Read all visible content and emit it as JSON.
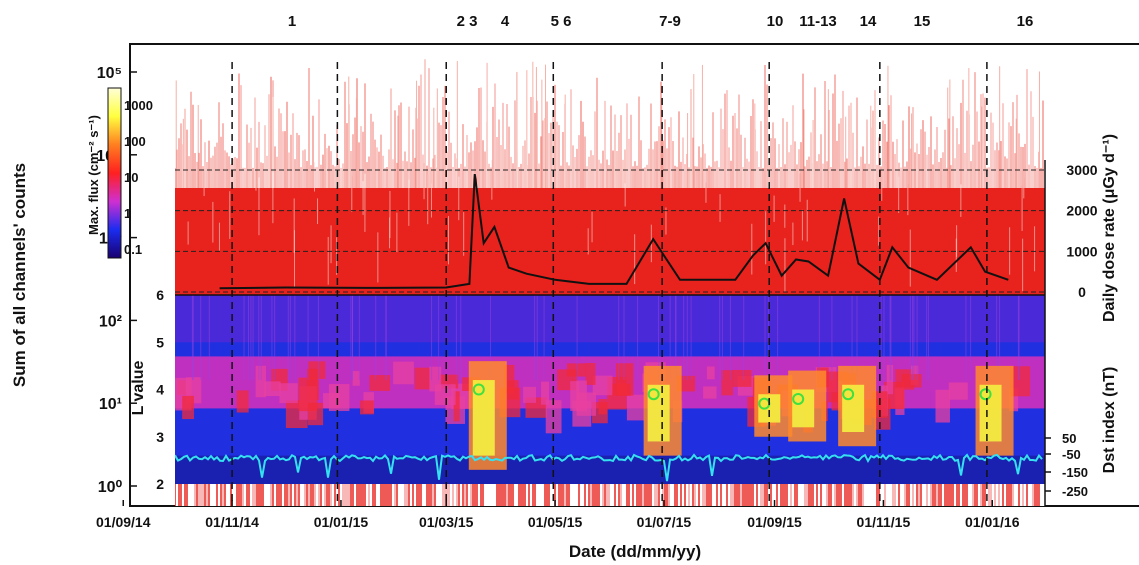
{
  "chart_data": {
    "type": "composite",
    "xlabel": "Date (dd/mm/yy)",
    "x_ticks": [
      "01/09/14",
      "01/11/14",
      "01/01/15",
      "01/03/15",
      "01/05/15",
      "01/07/15",
      "01/09/15",
      "01/11/15",
      "01/01/16"
    ],
    "x_range": [
      "2014-08-10",
      "2016-01-30"
    ],
    "events": {
      "labels": [
        "1",
        "2 3",
        "4",
        "5 6",
        "7-9",
        "10",
        "11-13",
        "14",
        "15",
        "16"
      ],
      "marker_dates": [
        "2014-11-01",
        "2014-12-30",
        "2015-03-01",
        "2015-04-30",
        "2015-06-30",
        "2015-08-29",
        "2015-10-30",
        "2015-12-29"
      ]
    },
    "counts_panel": {
      "ylabel": "Sum of all channels' counts",
      "scale": "log",
      "y_ticks": [
        "10⁰",
        "10¹",
        "10²",
        "10³",
        "10⁴",
        "10⁵"
      ],
      "ylim": [
        0.5,
        300000
      ],
      "series_color": "#e8221c"
    },
    "dose_panel": {
      "ylabel": "Daily dose rate (μGy d⁻¹)",
      "y_ticks": [
        "0",
        "1000",
        "2000",
        "3000"
      ],
      "ylim": [
        0,
        3000
      ],
      "series": [
        {
          "x": "2014-10-25",
          "y": 90
        },
        {
          "x": "2014-12-01",
          "y": 110
        },
        {
          "x": "2015-01-15",
          "y": 100
        },
        {
          "x": "2015-03-01",
          "y": 110
        },
        {
          "x": "2015-03-14",
          "y": 200
        },
        {
          "x": "2015-03-17",
          "y": 2900
        },
        {
          "x": "2015-03-22",
          "y": 1200
        },
        {
          "x": "2015-03-28",
          "y": 1600
        },
        {
          "x": "2015-04-05",
          "y": 600
        },
        {
          "x": "2015-04-15",
          "y": 450
        },
        {
          "x": "2015-05-01",
          "y": 300
        },
        {
          "x": "2015-05-20",
          "y": 200
        },
        {
          "x": "2015-06-10",
          "y": 200
        },
        {
          "x": "2015-06-25",
          "y": 1300
        },
        {
          "x": "2015-07-01",
          "y": 900
        },
        {
          "x": "2015-07-10",
          "y": 300
        },
        {
          "x": "2015-08-10",
          "y": 300
        },
        {
          "x": "2015-08-20",
          "y": 900
        },
        {
          "x": "2015-08-27",
          "y": 1200
        },
        {
          "x": "2015-09-05",
          "y": 400
        },
        {
          "x": "2015-09-13",
          "y": 800
        },
        {
          "x": "2015-09-20",
          "y": 750
        },
        {
          "x": "2015-10-01",
          "y": 400
        },
        {
          "x": "2015-10-10",
          "y": 2300
        },
        {
          "x": "2015-10-18",
          "y": 700
        },
        {
          "x": "2015-10-30",
          "y": 300
        },
        {
          "x": "2015-11-06",
          "y": 1100
        },
        {
          "x": "2015-11-15",
          "y": 600
        },
        {
          "x": "2015-12-01",
          "y": 300
        },
        {
          "x": "2015-12-20",
          "y": 1100
        },
        {
          "x": "2015-12-28",
          "y": 500
        },
        {
          "x": "2016-01-10",
          "y": 300
        }
      ]
    },
    "lvalue_panel": {
      "ylabel": "L value",
      "y_ticks": [
        "2",
        "3",
        "4",
        "5",
        "6"
      ],
      "ylim": [
        2,
        6
      ],
      "colorbar": {
        "label": "Max. flux (cm⁻² s⁻¹)",
        "ticks": [
          "0.1",
          "1",
          "10",
          "100",
          "1000"
        ],
        "colors": [
          "#1a0070",
          "#1b2cf0",
          "#d02fd0",
          "#ff2020",
          "#ff7f20",
          "#ffff40",
          "#ffffd8"
        ]
      },
      "bursts": [
        {
          "x": "2015-03-17",
          "lmin": 2.3,
          "lmax": 4.6
        },
        {
          "x": "2015-06-23",
          "lmin": 2.6,
          "lmax": 4.5
        },
        {
          "x": "2015-08-24",
          "lmin": 3.0,
          "lmax": 4.3
        },
        {
          "x": "2015-09-12",
          "lmin": 2.9,
          "lmax": 4.4
        },
        {
          "x": "2015-10-10",
          "lmin": 2.8,
          "lmax": 4.5
        },
        {
          "x": "2015-12-26",
          "lmin": 2.6,
          "lmax": 4.5
        }
      ]
    },
    "dst_panel": {
      "ylabel": "Dst index (nT)",
      "y_ticks": [
        "50",
        "-50",
        "-150",
        "-250"
      ],
      "line_color": "#35e0f0"
    }
  }
}
